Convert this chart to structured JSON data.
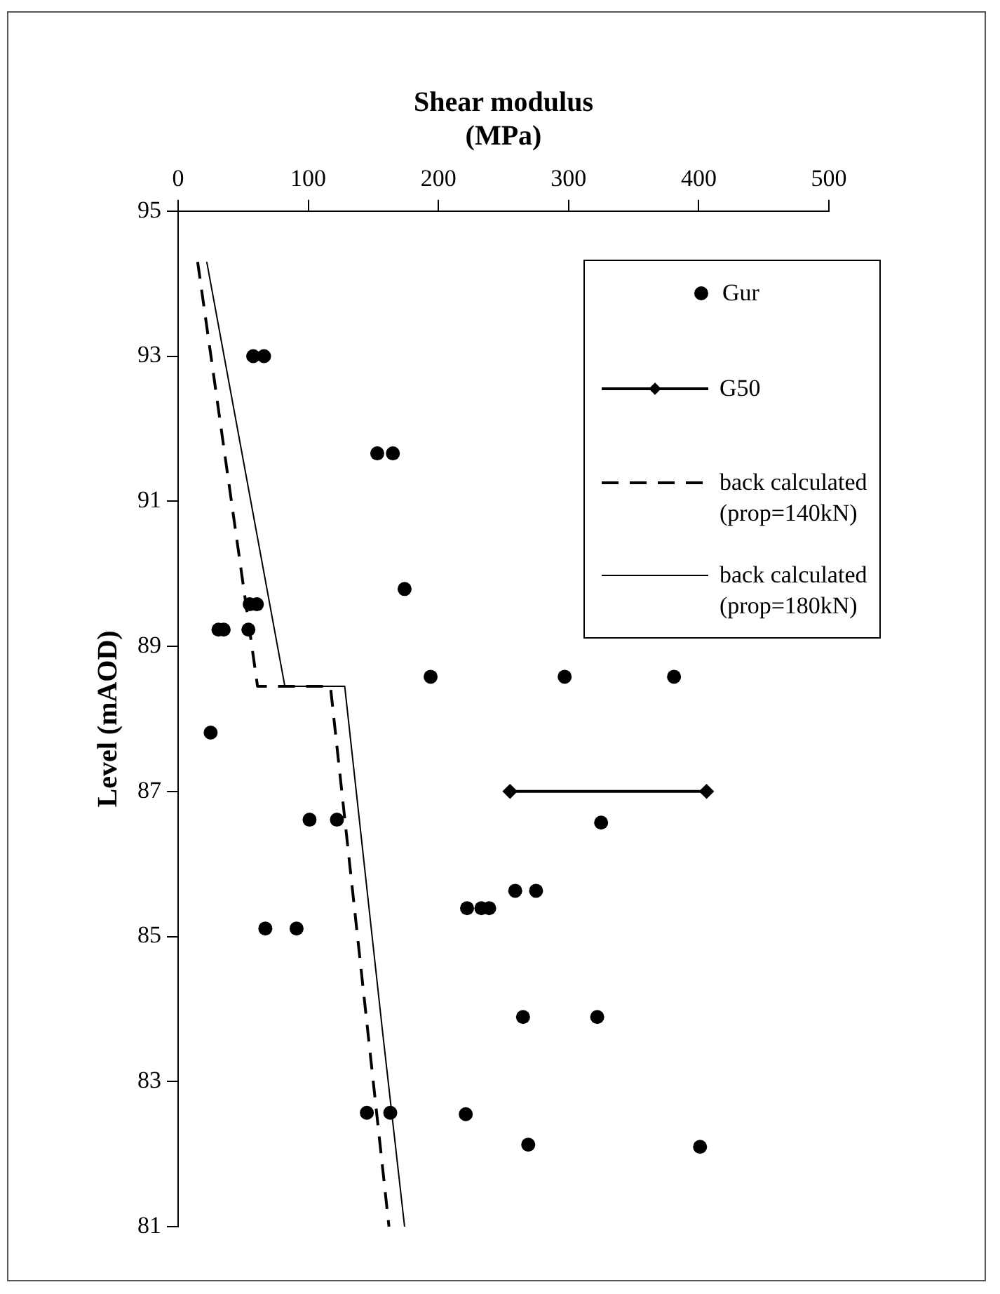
{
  "chart_data": {
    "type": "scatter",
    "xlabel": "Shear modulus\n(MPa)",
    "ylabel": "Level (mAOD)",
    "xlim": [
      0,
      500
    ],
    "xticks": [
      0,
      100,
      200,
      300,
      400,
      500
    ],
    "ylim": [
      81,
      95
    ],
    "yticks": [
      81,
      83,
      85,
      87,
      89,
      91,
      93,
      95
    ],
    "grid": false,
    "legend": "top right",
    "series": [
      {
        "name": "Gur",
        "type": "scatter",
        "marker": "circle",
        "color": "#000000",
        "x": [
          57.7,
          66,
          153,
          165,
          174,
          55,
          60.5,
          31,
          35,
          54,
          194,
          297,
          381,
          25,
          101,
          122,
          325,
          67,
          91,
          222,
          233,
          239,
          259,
          275,
          265,
          322,
          145,
          163,
          221,
          269,
          401
        ],
        "values": [
          93,
          93,
          91.66,
          91.66,
          89.79,
          89.58,
          89.58,
          89.23,
          89.23,
          89.23,
          88.58,
          88.58,
          88.58,
          87.81,
          86.61,
          86.61,
          86.57,
          85.11,
          85.11,
          85.39,
          85.39,
          85.39,
          85.63,
          85.63,
          83.89,
          83.89,
          82.57,
          82.57,
          82.55,
          82.13,
          82.1
        ]
      },
      {
        "name": "G50",
        "type": "line",
        "marker": "diamond",
        "line_style": "solid",
        "color": "#000000",
        "x": [
          255,
          406
        ],
        "values": [
          87,
          87
        ]
      },
      {
        "name": "back calculated\n(prop=140kN)",
        "type": "line",
        "marker": "none",
        "line_style": "dashed",
        "color": "#000000",
        "x": [
          15,
          61,
          117,
          162
        ],
        "values": [
          94.3,
          88.45,
          88.45,
          81
        ]
      },
      {
        "name": "back calculated\n(prop=180kN)",
        "type": "line",
        "marker": "none",
        "line_style": "solid",
        "color": "#000000",
        "x": [
          22,
          82,
          128,
          157,
          174
        ],
        "values": [
          94.3,
          88.45,
          88.45,
          83.7,
          81
        ]
      }
    ]
  }
}
